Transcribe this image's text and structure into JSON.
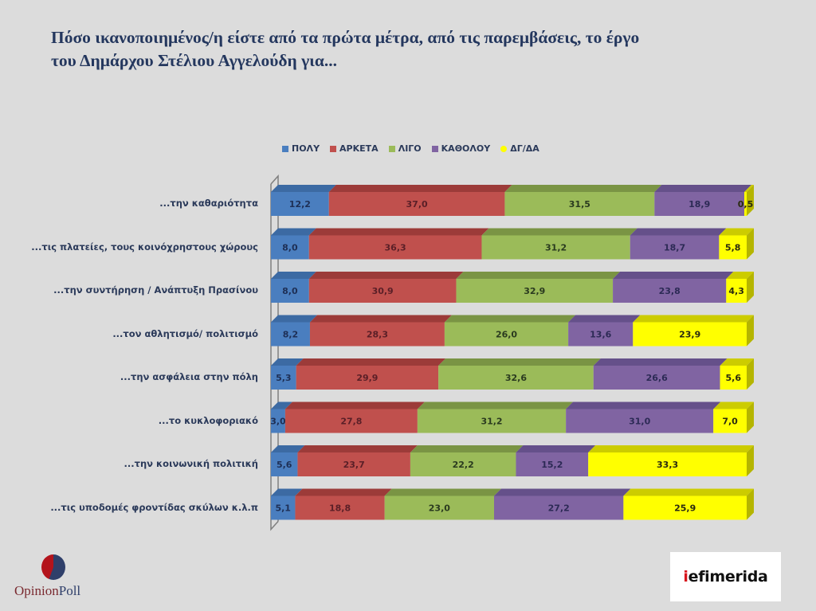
{
  "title_line1": "Πόσο ικανοποιημένος/η είστε από τα πρώτα μέτρα, από τις παρεμβάσεις, το έργο",
  "title_line2": "του  Δημάρχου Στέλιου Αγγελούδη για...",
  "logos": {
    "left_part1": "Opinion",
    "left_part2": "Poll",
    "right_prefix": "i",
    "right_rest": "efimerida"
  },
  "colors": {
    "ΠΟΛΥ": "#4a7ebf",
    "ΑΡΚΕΤΑ": "#c0504d",
    "ΛΙΓΟ": "#9bbb59",
    "ΚΑΘΟΛΟΥ": "#8064a2",
    "ΔΓ/ΔΑ": "#ffff00"
  },
  "chart_data": {
    "type": "bar",
    "orientation": "horizontal",
    "stacked": true,
    "style": "3d",
    "title": "Πόσο ικανοποιημένος/η είστε από τα πρώτα μέτρα, από τις παρεμβάσεις, το έργο του  Δημάρχου Στέλιου Αγγελούδη για...",
    "xlabel": "",
    "ylabel": "",
    "legend_position": "top",
    "grid": false,
    "categories": [
      "...την καθαριότητα",
      "...τις πλατείες, τους κοινόχρηστους χώρους",
      "...την συντήρηση / Ανάπτυξη Πρασίνου",
      "...τον αθλητισμό/ πολιτισμό",
      "...την ασφάλεια στην πόλη",
      "...το κυκλοφοριακό",
      "...την κοινωνική πολιτική",
      "...τις υποδομές φροντίδας σκύλων κ.λ.π"
    ],
    "series": [
      {
        "name": "ΠΟΛΥ",
        "values": [
          12.2,
          8.0,
          8.0,
          8.2,
          5.3,
          3.0,
          5.6,
          5.1
        ],
        "labels": [
          "12,2",
          "8,0",
          "8,0",
          "8,2",
          "5,3",
          "3,0",
          "5,6",
          "5,1"
        ]
      },
      {
        "name": "ΑΡΚΕΤΑ",
        "values": [
          37.0,
          36.3,
          30.9,
          28.3,
          29.9,
          27.8,
          23.7,
          18.8
        ],
        "labels": [
          "37,0",
          "36,3",
          "30,9",
          "28,3",
          "29,9",
          "27,8",
          "23,7",
          "18,8"
        ]
      },
      {
        "name": "ΛΙΓΟ",
        "values": [
          31.5,
          31.2,
          32.9,
          26.0,
          32.6,
          31.2,
          22.2,
          23.0
        ],
        "labels": [
          "31,5",
          "31,2",
          "32,9",
          "26,0",
          "32,6",
          "31,2",
          "22,2",
          "23,0"
        ]
      },
      {
        "name": "ΚΑΘΟΛΟΥ",
        "values": [
          18.9,
          18.7,
          23.8,
          13.6,
          26.6,
          31.0,
          15.2,
          27.2
        ],
        "labels": [
          "18,9",
          "18,7",
          "23,8",
          "13,6",
          "26,6",
          "31,0",
          "15,2",
          "27,2"
        ]
      },
      {
        "name": "ΔΓ/ΔΑ",
        "values": [
          0.5,
          5.8,
          4.3,
          23.9,
          5.6,
          7.0,
          33.3,
          25.9
        ],
        "labels": [
          "0,5",
          "5,8",
          "4,3",
          "23,9",
          "5,6",
          "7,0",
          "33,3",
          "25,9"
        ]
      }
    ],
    "xlim": [
      0,
      100
    ]
  }
}
